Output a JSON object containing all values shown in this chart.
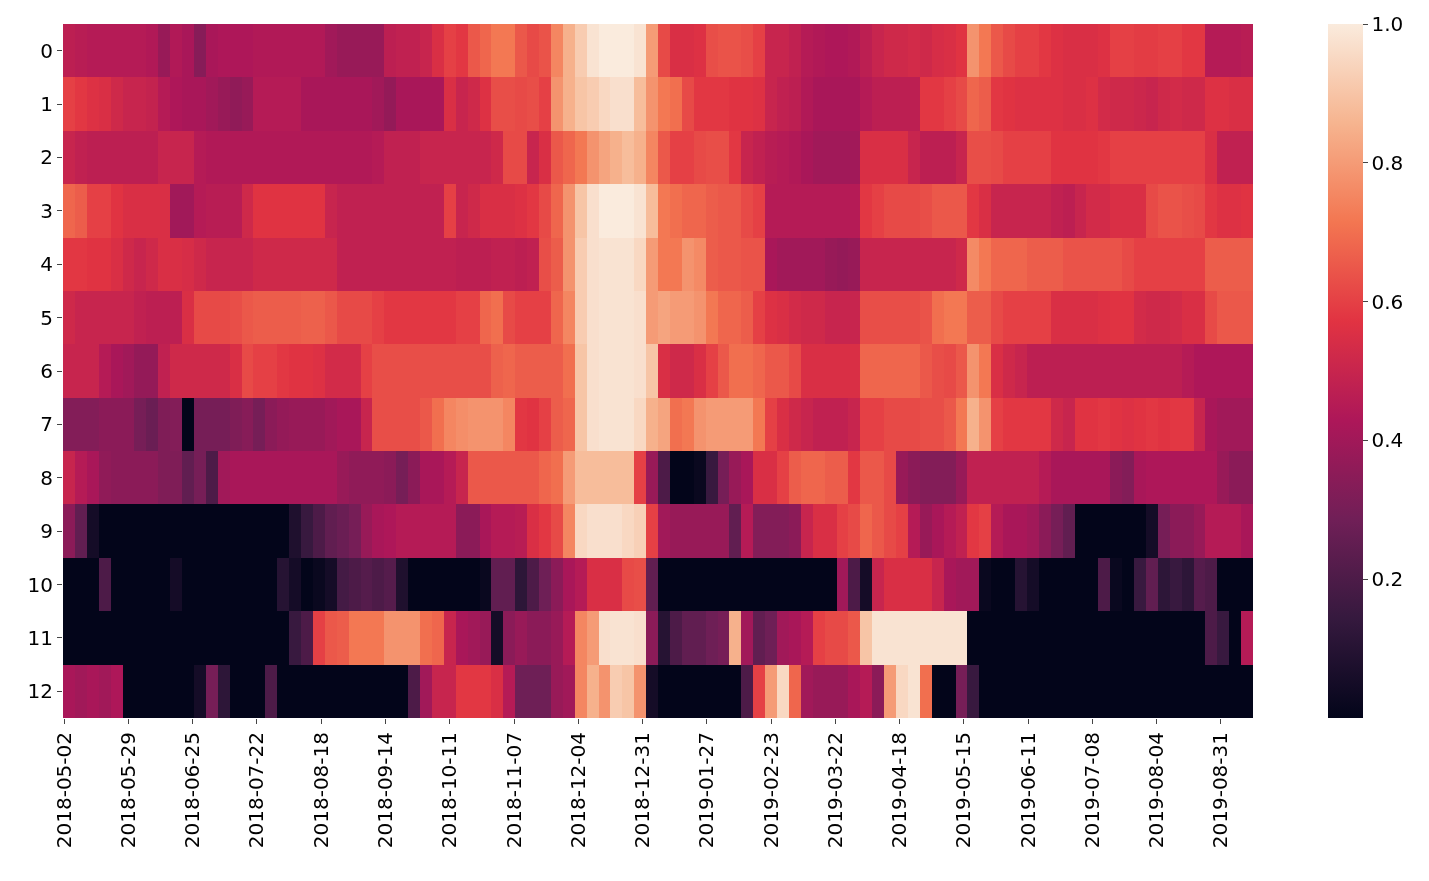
{
  "chart_data": {
    "type": "heatmap",
    "x": [
      "2018-05-04",
      "2018-05-09",
      "2018-05-14",
      "2018-05-19",
      "2018-05-24",
      "2018-05-29",
      "2018-06-03",
      "2018-06-08",
      "2018-06-13",
      "2018-06-18",
      "2018-06-23",
      "2018-06-28",
      "2018-07-03",
      "2018-07-08",
      "2018-07-13",
      "2018-07-18",
      "2018-07-23",
      "2018-07-28",
      "2018-08-02",
      "2018-08-07",
      "2018-08-12",
      "2018-08-17",
      "2018-08-22",
      "2018-08-27",
      "2018-09-01",
      "2018-09-06",
      "2018-09-11",
      "2018-09-16",
      "2018-09-21",
      "2018-09-26",
      "2018-10-01",
      "2018-10-06",
      "2018-10-11",
      "2018-10-16",
      "2018-10-21",
      "2018-10-26",
      "2018-10-31",
      "2018-11-05",
      "2018-11-10",
      "2018-11-15",
      "2018-11-20",
      "2018-11-25",
      "2018-11-30",
      "2018-12-05",
      "2018-12-10",
      "2018-12-15",
      "2018-12-20",
      "2018-12-25",
      "2018-12-30",
      "2019-01-04",
      "2019-01-09",
      "2019-01-14",
      "2019-01-19",
      "2019-01-24",
      "2019-01-29",
      "2019-02-03",
      "2019-02-08",
      "2019-02-13",
      "2019-02-18",
      "2019-02-23",
      "2019-02-28",
      "2019-03-05",
      "2019-03-10",
      "2019-03-15",
      "2019-03-20",
      "2019-03-25",
      "2019-03-30",
      "2019-04-04",
      "2019-04-09",
      "2019-04-14",
      "2019-04-19",
      "2019-04-24",
      "2019-04-29",
      "2019-05-04",
      "2019-05-09",
      "2019-05-14",
      "2019-05-19",
      "2019-05-24",
      "2019-05-29",
      "2019-06-03",
      "2019-06-08",
      "2019-06-13",
      "2019-06-18",
      "2019-06-23",
      "2019-06-28",
      "2019-07-03",
      "2019-07-08",
      "2019-07-13",
      "2019-07-18",
      "2019-07-23",
      "2019-07-28",
      "2019-08-02",
      "2019-08-07",
      "2019-08-12",
      "2019-08-17",
      "2019-08-22",
      "2019-08-27",
      "2019-09-01",
      "2019-09-06",
      "2019-09-11"
    ],
    "xlim": [
      "2018-05-01T12:00",
      "2019-09-13T12:00"
    ],
    "xticks": [
      "2018-05-02",
      "2018-05-29",
      "2018-06-25",
      "2018-07-22",
      "2018-08-18",
      "2018-09-14",
      "2018-10-11",
      "2018-11-07",
      "2018-12-04",
      "2018-12-31",
      "2019-01-27",
      "2019-02-23",
      "2019-03-22",
      "2019-04-18",
      "2019-05-15",
      "2019-06-11",
      "2019-07-08",
      "2019-08-04",
      "2019-08-31"
    ],
    "y_categories": [
      "0",
      "1",
      "2",
      "3",
      "4",
      "5",
      "6",
      "7",
      "8",
      "9",
      "10",
      "11",
      "12"
    ],
    "cells": [
      [
        0.47,
        0.46,
        0.45,
        0.45,
        0.45,
        0.45,
        0.45,
        0.44,
        0.38,
        0.44,
        0.42,
        0.34,
        0.42,
        0.43,
        0.43,
        0.43,
        0.44,
        0.44,
        0.44,
        0.44,
        0.44,
        0.44,
        0.4,
        0.38,
        0.38,
        0.38,
        0.38,
        0.47,
        0.48,
        0.48,
        0.5,
        0.55,
        0.6,
        0.58,
        0.65,
        0.68,
        0.72,
        0.72,
        0.65,
        0.62,
        0.64,
        0.75,
        0.85,
        0.92,
        0.98,
        1.0,
        1.0,
        1.0,
        0.98,
        0.8,
        0.62,
        0.55,
        0.55,
        0.56,
        0.63,
        0.64,
        0.64,
        0.63,
        0.6,
        0.5,
        0.5,
        0.48,
        0.45,
        0.44,
        0.43,
        0.43,
        0.44,
        0.47,
        0.5,
        0.52,
        0.52,
        0.53,
        0.52,
        0.54,
        0.55,
        0.57,
        0.78,
        0.72,
        0.65,
        0.62,
        0.6,
        0.6,
        0.58,
        0.56,
        0.55,
        0.55,
        0.55,
        0.56,
        0.6,
        0.6,
        0.59,
        0.59,
        0.6,
        0.6,
        0.58,
        0.58,
        0.45,
        0.45,
        0.45,
        0.46
      ],
      [
        0.6,
        0.58,
        0.56,
        0.55,
        0.52,
        0.5,
        0.5,
        0.49,
        0.45,
        0.43,
        0.42,
        0.42,
        0.4,
        0.38,
        0.36,
        0.38,
        0.45,
        0.45,
        0.45,
        0.45,
        0.42,
        0.42,
        0.42,
        0.42,
        0.42,
        0.42,
        0.4,
        0.37,
        0.42,
        0.42,
        0.42,
        0.42,
        0.55,
        0.5,
        0.52,
        0.56,
        0.63,
        0.63,
        0.62,
        0.63,
        0.6,
        0.78,
        0.85,
        0.9,
        0.92,
        0.95,
        0.97,
        0.97,
        0.88,
        0.78,
        0.72,
        0.7,
        0.62,
        0.58,
        0.58,
        0.58,
        0.57,
        0.57,
        0.56,
        0.5,
        0.48,
        0.47,
        0.44,
        0.42,
        0.42,
        0.42,
        0.42,
        0.45,
        0.47,
        0.47,
        0.47,
        0.47,
        0.58,
        0.58,
        0.6,
        0.62,
        0.68,
        0.66,
        0.58,
        0.57,
        0.56,
        0.56,
        0.56,
        0.56,
        0.55,
        0.55,
        0.56,
        0.53,
        0.52,
        0.52,
        0.51,
        0.5,
        0.52,
        0.53,
        0.52,
        0.52,
        0.56,
        0.56,
        0.55,
        0.55
      ],
      [
        0.5,
        0.48,
        0.47,
        0.47,
        0.47,
        0.47,
        0.47,
        0.47,
        0.5,
        0.5,
        0.5,
        0.45,
        0.44,
        0.44,
        0.44,
        0.44,
        0.44,
        0.44,
        0.44,
        0.44,
        0.44,
        0.44,
        0.44,
        0.44,
        0.44,
        0.44,
        0.45,
        0.48,
        0.48,
        0.48,
        0.5,
        0.5,
        0.5,
        0.5,
        0.5,
        0.5,
        0.52,
        0.62,
        0.62,
        0.5,
        0.55,
        0.65,
        0.68,
        0.72,
        0.78,
        0.82,
        0.85,
        0.88,
        0.85,
        0.75,
        0.65,
        0.6,
        0.6,
        0.62,
        0.63,
        0.63,
        0.58,
        0.5,
        0.48,
        0.46,
        0.45,
        0.44,
        0.42,
        0.4,
        0.4,
        0.4,
        0.4,
        0.55,
        0.55,
        0.55,
        0.55,
        0.5,
        0.47,
        0.47,
        0.47,
        0.5,
        0.63,
        0.63,
        0.62,
        0.6,
        0.6,
        0.6,
        0.6,
        0.57,
        0.57,
        0.57,
        0.57,
        0.58,
        0.6,
        0.6,
        0.6,
        0.6,
        0.6,
        0.6,
        0.6,
        0.6,
        0.55,
        0.48,
        0.48,
        0.48
      ],
      [
        0.68,
        0.66,
        0.6,
        0.6,
        0.57,
        0.55,
        0.55,
        0.55,
        0.55,
        0.4,
        0.4,
        0.45,
        0.46,
        0.46,
        0.46,
        0.52,
        0.57,
        0.57,
        0.57,
        0.57,
        0.57,
        0.57,
        0.5,
        0.48,
        0.48,
        0.48,
        0.48,
        0.48,
        0.48,
        0.48,
        0.48,
        0.48,
        0.6,
        0.5,
        0.52,
        0.55,
        0.55,
        0.55,
        0.56,
        0.58,
        0.62,
        0.68,
        0.78,
        0.9,
        0.97,
        1.0,
        1.0,
        1.0,
        0.98,
        0.88,
        0.72,
        0.7,
        0.68,
        0.68,
        0.66,
        0.65,
        0.65,
        0.62,
        0.6,
        0.45,
        0.45,
        0.45,
        0.45,
        0.45,
        0.45,
        0.45,
        0.45,
        0.58,
        0.6,
        0.62,
        0.62,
        0.62,
        0.63,
        0.65,
        0.65,
        0.65,
        0.58,
        0.55,
        0.5,
        0.5,
        0.5,
        0.5,
        0.5,
        0.48,
        0.47,
        0.5,
        0.53,
        0.53,
        0.55,
        0.55,
        0.55,
        0.62,
        0.64,
        0.64,
        0.63,
        0.62,
        0.58,
        0.56,
        0.56,
        0.57
      ],
      [
        0.58,
        0.58,
        0.57,
        0.57,
        0.55,
        0.52,
        0.5,
        0.52,
        0.55,
        0.55,
        0.54,
        0.52,
        0.5,
        0.5,
        0.5,
        0.5,
        0.52,
        0.52,
        0.52,
        0.52,
        0.52,
        0.52,
        0.52,
        0.48,
        0.48,
        0.48,
        0.48,
        0.48,
        0.48,
        0.48,
        0.48,
        0.48,
        0.48,
        0.47,
        0.47,
        0.47,
        0.48,
        0.48,
        0.47,
        0.48,
        0.63,
        0.66,
        0.78,
        0.92,
        0.97,
        0.98,
        0.98,
        0.98,
        0.95,
        0.8,
        0.72,
        0.72,
        0.78,
        0.76,
        0.66,
        0.65,
        0.65,
        0.64,
        0.64,
        0.42,
        0.4,
        0.4,
        0.4,
        0.4,
        0.38,
        0.37,
        0.38,
        0.5,
        0.5,
        0.5,
        0.5,
        0.5,
        0.5,
        0.5,
        0.5,
        0.52,
        0.76,
        0.72,
        0.68,
        0.68,
        0.68,
        0.66,
        0.66,
        0.66,
        0.64,
        0.64,
        0.64,
        0.64,
        0.64,
        0.62,
        0.6,
        0.6,
        0.6,
        0.6,
        0.6,
        0.6,
        0.66,
        0.66,
        0.66,
        0.66
      ],
      [
        0.52,
        0.5,
        0.5,
        0.5,
        0.5,
        0.5,
        0.48,
        0.47,
        0.47,
        0.47,
        0.55,
        0.62,
        0.62,
        0.62,
        0.63,
        0.65,
        0.66,
        0.66,
        0.66,
        0.66,
        0.67,
        0.67,
        0.65,
        0.62,
        0.62,
        0.62,
        0.6,
        0.58,
        0.58,
        0.58,
        0.58,
        0.58,
        0.58,
        0.6,
        0.6,
        0.68,
        0.7,
        0.62,
        0.6,
        0.6,
        0.6,
        0.68,
        0.75,
        0.92,
        0.97,
        0.98,
        0.98,
        0.98,
        0.97,
        0.8,
        0.82,
        0.8,
        0.8,
        0.78,
        0.72,
        0.68,
        0.68,
        0.66,
        0.6,
        0.56,
        0.55,
        0.53,
        0.52,
        0.52,
        0.5,
        0.5,
        0.5,
        0.63,
        0.63,
        0.63,
        0.63,
        0.63,
        0.64,
        0.7,
        0.72,
        0.72,
        0.66,
        0.66,
        0.62,
        0.6,
        0.6,
        0.6,
        0.6,
        0.55,
        0.55,
        0.55,
        0.55,
        0.56,
        0.57,
        0.57,
        0.53,
        0.52,
        0.52,
        0.53,
        0.55,
        0.55,
        0.62,
        0.65,
        0.65,
        0.65
      ],
      [
        0.5,
        0.5,
        0.5,
        0.45,
        0.42,
        0.4,
        0.37,
        0.37,
        0.48,
        0.52,
        0.52,
        0.52,
        0.52,
        0.52,
        0.55,
        0.62,
        0.6,
        0.6,
        0.58,
        0.57,
        0.57,
        0.56,
        0.53,
        0.53,
        0.53,
        0.6,
        0.63,
        0.63,
        0.63,
        0.63,
        0.63,
        0.63,
        0.63,
        0.63,
        0.63,
        0.63,
        0.67,
        0.68,
        0.66,
        0.66,
        0.66,
        0.66,
        0.7,
        0.9,
        0.97,
        0.98,
        0.98,
        0.98,
        0.97,
        0.9,
        0.55,
        0.52,
        0.52,
        0.55,
        0.6,
        0.65,
        0.7,
        0.7,
        0.68,
        0.65,
        0.65,
        0.62,
        0.55,
        0.55,
        0.55,
        0.55,
        0.55,
        0.68,
        0.68,
        0.68,
        0.68,
        0.68,
        0.65,
        0.63,
        0.62,
        0.65,
        0.78,
        0.72,
        0.55,
        0.52,
        0.5,
        0.47,
        0.47,
        0.47,
        0.47,
        0.47,
        0.47,
        0.47,
        0.47,
        0.47,
        0.47,
        0.47,
        0.47,
        0.47,
        0.45,
        0.43,
        0.43,
        0.43,
        0.43,
        0.43
      ],
      [
        0.33,
        0.33,
        0.33,
        0.35,
        0.35,
        0.35,
        0.3,
        0.27,
        0.32,
        0.33,
        0,
        0.3,
        0.3,
        0.3,
        0.32,
        0.34,
        0.3,
        0.35,
        0.37,
        0.38,
        0.38,
        0.38,
        0.4,
        0.42,
        0.42,
        0.5,
        0.63,
        0.63,
        0.63,
        0.63,
        0.65,
        0.7,
        0.75,
        0.77,
        0.78,
        0.78,
        0.78,
        0.75,
        0.58,
        0.57,
        0.6,
        0.66,
        0.68,
        0.9,
        0.97,
        0.98,
        0.98,
        0.98,
        0.95,
        0.85,
        0.82,
        0.7,
        0.72,
        0.78,
        0.8,
        0.8,
        0.8,
        0.8,
        0.72,
        0.6,
        0.55,
        0.52,
        0.5,
        0.48,
        0.48,
        0.48,
        0.5,
        0.6,
        0.6,
        0.62,
        0.62,
        0.62,
        0.63,
        0.63,
        0.65,
        0.72,
        0.85,
        0.78,
        0.6,
        0.58,
        0.58,
        0.58,
        0.58,
        0.52,
        0.5,
        0.57,
        0.57,
        0.58,
        0.57,
        0.56,
        0.57,
        0.58,
        0.57,
        0.58,
        0.58,
        0.5,
        0.42,
        0.4,
        0.4,
        0.4
      ],
      [
        0.5,
        0.45,
        0.42,
        0.36,
        0.35,
        0.35,
        0.35,
        0.35,
        0.32,
        0.32,
        0.25,
        0.3,
        0.2,
        0.4,
        0.42,
        0.42,
        0.42,
        0.42,
        0.42,
        0.42,
        0.42,
        0.42,
        0.42,
        0.38,
        0.36,
        0.36,
        0.36,
        0.35,
        0.3,
        0.35,
        0.42,
        0.42,
        0.45,
        0.5,
        0.65,
        0.65,
        0.65,
        0.65,
        0.65,
        0.65,
        0.68,
        0.7,
        0.8,
        0.88,
        0.88,
        0.88,
        0.88,
        0.88,
        0.6,
        0.38,
        0.2,
        0,
        0,
        0.02,
        0.15,
        0.3,
        0.38,
        0.42,
        0.55,
        0.55,
        0.6,
        0.66,
        0.68,
        0.68,
        0.66,
        0.66,
        0.58,
        0.65,
        0.65,
        0.62,
        0.38,
        0.35,
        0.33,
        0.33,
        0.33,
        0.38,
        0.48,
        0.48,
        0.48,
        0.48,
        0.48,
        0.48,
        0.45,
        0.42,
        0.42,
        0.42,
        0.42,
        0.42,
        0.35,
        0.33,
        0.42,
        0.43,
        0.43,
        0.43,
        0.43,
        0.43,
        0.43,
        0.38,
        0.35,
        0.35
      ],
      [
        0.35,
        0.25,
        0.05,
        0,
        0,
        0,
        0,
        0,
        0,
        0,
        0,
        0,
        0,
        0,
        0,
        0,
        0,
        0,
        0,
        0.08,
        0.15,
        0.2,
        0.25,
        0.27,
        0.3,
        0.38,
        0.42,
        0.43,
        0.45,
        0.45,
        0.45,
        0.45,
        0.45,
        0.35,
        0.35,
        0.42,
        0.45,
        0.45,
        0.46,
        0.55,
        0.58,
        0.62,
        0.75,
        0.95,
        0.97,
        0.97,
        0.97,
        0.95,
        0.93,
        0.6,
        0.4,
        0.38,
        0.38,
        0.38,
        0.38,
        0.38,
        0.25,
        0.45,
        0.33,
        0.33,
        0.33,
        0.35,
        0.5,
        0.55,
        0.55,
        0.6,
        0.62,
        0.68,
        0.65,
        0.62,
        0.6,
        0.45,
        0.38,
        0.42,
        0.45,
        0.48,
        0.58,
        0.6,
        0.45,
        0.42,
        0.42,
        0.4,
        0.35,
        0.3,
        0.25,
        0,
        0,
        0,
        0,
        0,
        0,
        0.05,
        0.3,
        0.35,
        0.35,
        0.38,
        0.45,
        0.45,
        0.45,
        0.42
      ],
      [
        0,
        0,
        0,
        0.2,
        0,
        0,
        0,
        0,
        0,
        0.05,
        0,
        0,
        0,
        0,
        0,
        0,
        0,
        0,
        0.1,
        0.05,
        0,
        0.02,
        0.05,
        0.18,
        0.2,
        0.22,
        0.2,
        0.22,
        0.08,
        0,
        0,
        0,
        0,
        0,
        0,
        0.02,
        0.25,
        0.25,
        0.12,
        0.2,
        0.28,
        0.35,
        0.42,
        0.45,
        0.55,
        0.55,
        0.55,
        0.62,
        0.63,
        0.25,
        0,
        0,
        0,
        0,
        0,
        0,
        0,
        0,
        0,
        0,
        0,
        0,
        0,
        0,
        0,
        0.4,
        0.2,
        0.05,
        0.5,
        0.55,
        0.55,
        0.55,
        0.55,
        0.5,
        0.42,
        0.4,
        0.4,
        0.02,
        0,
        0,
        0.1,
        0.05,
        0,
        0,
        0,
        0,
        0,
        0.2,
        0.02,
        0,
        0.15,
        0.25,
        0.12,
        0.15,
        0.12,
        0.22,
        0.2,
        0,
        0,
        0
      ],
      [
        0,
        0,
        0,
        0,
        0,
        0,
        0,
        0,
        0,
        0,
        0,
        0,
        0,
        0,
        0,
        0,
        0,
        0,
        0,
        0.15,
        0.2,
        0.6,
        0.65,
        0.66,
        0.72,
        0.72,
        0.72,
        0.78,
        0.78,
        0.78,
        0.7,
        0.68,
        0.5,
        0.42,
        0.4,
        0.38,
        0.05,
        0.35,
        0.38,
        0.35,
        0.35,
        0.38,
        0.45,
        0.75,
        0.8,
        0.97,
        0.98,
        0.98,
        0.97,
        0.35,
        0.1,
        0.2,
        0.25,
        0.25,
        0.28,
        0.3,
        0.85,
        0.4,
        0.25,
        0.28,
        0.4,
        0.42,
        0.45,
        0.6,
        0.62,
        0.62,
        0.65,
        0.9,
        0.98,
        0.98,
        0.98,
        0.98,
        0.98,
        0.98,
        0.98,
        0.98,
        0,
        0,
        0,
        0,
        0,
        0,
        0,
        0,
        0,
        0,
        0,
        0,
        0,
        0,
        0,
        0,
        0,
        0,
        0,
        0,
        0.2,
        0.15,
        0,
        0.45
      ],
      [
        0.42,
        0.4,
        0.42,
        0.4,
        0.43,
        0,
        0,
        0,
        0,
        0,
        0,
        0.05,
        0.3,
        0.12,
        0,
        0,
        0,
        0.2,
        0,
        0,
        0,
        0,
        0,
        0,
        0,
        0,
        0,
        0,
        0,
        0.2,
        0.4,
        0.5,
        0.5,
        0.58,
        0.58,
        0.58,
        0.55,
        0.45,
        0.28,
        0.28,
        0.28,
        0.38,
        0.4,
        0.75,
        0.85,
        0.78,
        0.92,
        0.9,
        0.78,
        0.05,
        0,
        0,
        0,
        0,
        0,
        0,
        0,
        0.2,
        0.6,
        0.8,
        0.95,
        0.68,
        0.4,
        0.38,
        0.38,
        0.38,
        0.42,
        0.45,
        0.35,
        0.8,
        0.95,
        0.98,
        0.7,
        0,
        0,
        0.3,
        0.15,
        0,
        0,
        0,
        0,
        0,
        0,
        0,
        0,
        0,
        0,
        0,
        0,
        0,
        0,
        0,
        0,
        0,
        0,
        0,
        0,
        0,
        0,
        0
      ]
    ],
    "clim": [
      0,
      1
    ],
    "cticks": [
      0.2,
      0.4,
      0.6,
      0.8,
      {
        "value": 1,
        "label": "1.0"
      }
    ]
  }
}
